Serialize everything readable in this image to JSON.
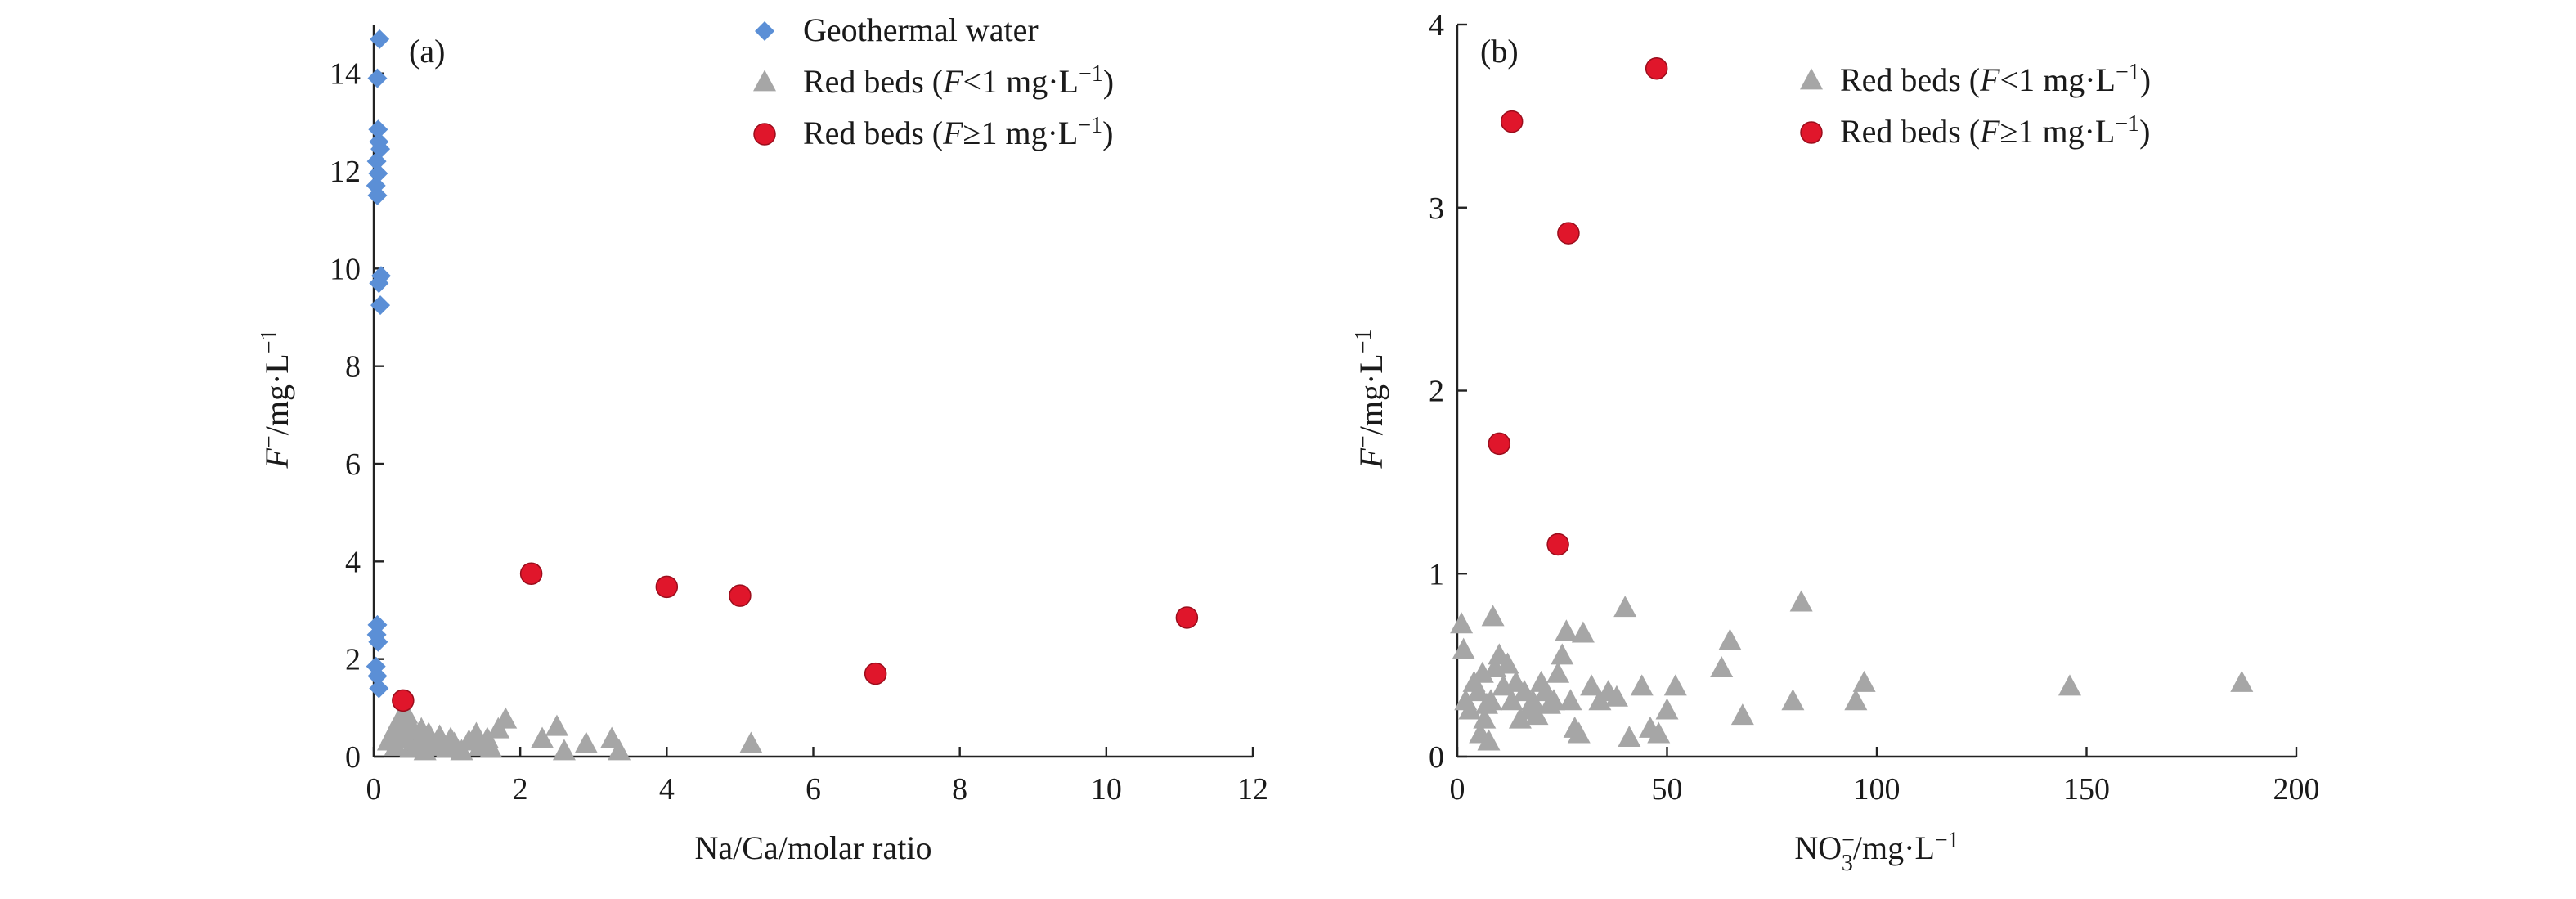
{
  "chart_data": [
    {
      "type": "scatter",
      "panel_label": "(a)",
      "xlabel": "Na/Ca/molar ratio",
      "ylabel": "F⁻/mg·L⁻¹",
      "xlim": [
        0,
        12
      ],
      "ylim": [
        0,
        15
      ],
      "xticks": [
        "0",
        "2",
        "4",
        "6",
        "8",
        "10",
        "12"
      ],
      "yticks": [
        "0",
        "2",
        "4",
        "6",
        "8",
        "10",
        "12",
        "14"
      ],
      "legend_position": "top-right",
      "series": [
        {
          "name": "Geothermal water",
          "marker": "diamond",
          "color": "#5b8fd6",
          "points": [
            [
              0.08,
              14.7
            ],
            [
              0.05,
              13.9
            ],
            [
              0.06,
              12.85
            ],
            [
              0.07,
              12.6
            ],
            [
              0.09,
              12.45
            ],
            [
              0.04,
              12.2
            ],
            [
              0.06,
              11.95
            ],
            [
              0.03,
              11.7
            ],
            [
              0.05,
              11.5
            ],
            [
              0.1,
              9.85
            ],
            [
              0.07,
              9.7
            ],
            [
              0.09,
              9.25
            ],
            [
              0.05,
              2.7
            ],
            [
              0.04,
              2.5
            ],
            [
              0.06,
              2.35
            ],
            [
              0.03,
              1.85
            ],
            [
              0.05,
              1.65
            ],
            [
              0.07,
              1.4
            ]
          ]
        },
        {
          "name": "Red beds (F<1 mg·L⁻¹)",
          "name_parts": [
            "Red beds (",
            "F",
            "<1 mg·L",
            "−1",
            ")"
          ],
          "marker": "triangle",
          "color": "#a6a6a6",
          "points": [
            [
              0.2,
              0.3
            ],
            [
              0.25,
              0.45
            ],
            [
              0.3,
              0.6
            ],
            [
              0.3,
              0.2
            ],
            [
              0.35,
              0.75
            ],
            [
              0.4,
              0.5
            ],
            [
              0.45,
              0.35
            ],
            [
              0.45,
              0.85
            ],
            [
              0.5,
              0.65
            ],
            [
              0.5,
              0.15
            ],
            [
              0.55,
              0.4
            ],
            [
              0.6,
              0.25
            ],
            [
              0.65,
              0.55
            ],
            [
              0.7,
              0.1
            ],
            [
              0.75,
              0.45
            ],
            [
              0.8,
              0.3
            ],
            [
              0.85,
              0.2
            ],
            [
              0.9,
              0.4
            ],
            [
              1.0,
              0.15
            ],
            [
              1.05,
              0.35
            ],
            [
              1.1,
              0.25
            ],
            [
              1.2,
              0.1
            ],
            [
              1.3,
              0.3
            ],
            [
              1.4,
              0.45
            ],
            [
              1.45,
              0.2
            ],
            [
              1.55,
              0.35
            ],
            [
              1.6,
              0.15
            ],
            [
              1.7,
              0.55
            ],
            [
              1.8,
              0.75
            ],
            [
              2.3,
              0.35
            ],
            [
              2.5,
              0.6
            ],
            [
              2.6,
              0.1
            ],
            [
              2.9,
              0.25
            ],
            [
              3.25,
              0.35
            ],
            [
              3.35,
              0.1
            ],
            [
              5.15,
              0.25
            ]
          ]
        },
        {
          "name": "Red beds (F≥1 mg·L⁻¹)",
          "name_parts": [
            "Red beds (",
            "F",
            "≥1 mg·L",
            "−1",
            ")"
          ],
          "marker": "circle",
          "color": "#e0162b",
          "points": [
            [
              0.4,
              1.15
            ],
            [
              2.15,
              3.75
            ],
            [
              4.0,
              3.48
            ],
            [
              5.0,
              3.3
            ],
            [
              6.85,
              1.7
            ],
            [
              11.1,
              2.85
            ]
          ]
        }
      ]
    },
    {
      "type": "scatter",
      "panel_label": "(b)",
      "xlabel": "NO₃⁻/mg·L⁻¹",
      "ylabel": "F⁻/mg·L⁻¹",
      "xlim": [
        0,
        200
      ],
      "ylim": [
        0,
        4
      ],
      "xticks": [
        "0",
        "50",
        "100",
        "150",
        "200"
      ],
      "yticks": [
        "0",
        "1",
        "2",
        "3",
        "4"
      ],
      "legend_position": "top-right",
      "series": [
        {
          "name": "Red beds (F<1 mg·L⁻¹)",
          "name_parts": [
            "Red beds (",
            "F",
            "<1 mg·L",
            "−1",
            ")"
          ],
          "marker": "triangle",
          "color": "#a6a6a6",
          "points": [
            [
              1,
              0.72
            ],
            [
              1.5,
              0.58
            ],
            [
              2,
              0.3
            ],
            [
              3,
              0.25
            ],
            [
              4,
              0.4
            ],
            [
              5,
              0.35
            ],
            [
              5.5,
              0.12
            ],
            [
              6,
              0.45
            ],
            [
              6.5,
              0.2
            ],
            [
              7,
              0.28
            ],
            [
              7.5,
              0.08
            ],
            [
              8,
              0.3
            ],
            [
              8.5,
              0.76
            ],
            [
              9,
              0.48
            ],
            [
              10,
              0.55
            ],
            [
              11,
              0.38
            ],
            [
              12,
              0.5
            ],
            [
              13,
              0.3
            ],
            [
              14,
              0.4
            ],
            [
              15,
              0.2
            ],
            [
              16,
              0.35
            ],
            [
              17,
              0.25
            ],
            [
              18,
              0.3
            ],
            [
              19,
              0.22
            ],
            [
              20,
              0.4
            ],
            [
              21,
              0.35
            ],
            [
              22,
              0.28
            ],
            [
              23,
              0.3
            ],
            [
              24,
              0.45
            ],
            [
              25,
              0.55
            ],
            [
              26,
              0.68
            ],
            [
              27,
              0.3
            ],
            [
              28,
              0.15
            ],
            [
              29,
              0.12
            ],
            [
              30,
              0.67
            ],
            [
              32,
              0.38
            ],
            [
              34,
              0.3
            ],
            [
              36,
              0.35
            ],
            [
              38,
              0.32
            ],
            [
              40,
              0.81
            ],
            [
              41,
              0.1
            ],
            [
              44,
              0.38
            ],
            [
              46,
              0.15
            ],
            [
              48,
              0.12
            ],
            [
              50,
              0.25
            ],
            [
              52,
              0.38
            ],
            [
              63,
              0.48
            ],
            [
              65,
              0.63
            ],
            [
              68,
              0.22
            ],
            [
              80,
              0.3
            ],
            [
              82,
              0.84
            ],
            [
              95,
              0.3
            ],
            [
              97,
              0.4
            ],
            [
              146,
              0.38
            ],
            [
              187,
              0.4
            ]
          ]
        },
        {
          "name": "Red beds (F≥1 mg·L⁻¹)",
          "name_parts": [
            "Red beds (",
            "F",
            "≥1 mg·L",
            "−1",
            ")"
          ],
          "marker": "circle",
          "color": "#e0162b",
          "points": [
            [
              10,
              1.71
            ],
            [
              13,
              3.47
            ],
            [
              24,
              1.16
            ],
            [
              26.5,
              2.86
            ],
            [
              47.5,
              3.76
            ]
          ]
        }
      ]
    }
  ]
}
